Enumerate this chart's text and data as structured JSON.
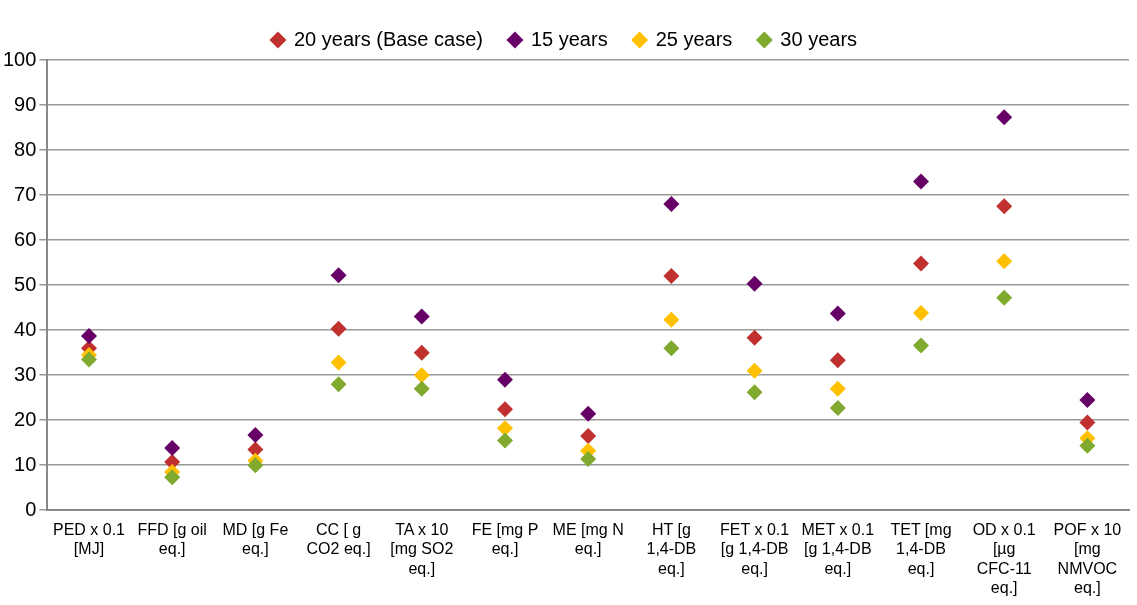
{
  "chart_data": {
    "type": "scatter",
    "categories": [
      "PED x 0.1 [MJ]",
      "FFD [g oil eq.]",
      "MD [g Fe eq.]",
      "CC [ g CO2 eq.]",
      "TA x 10 [mg SO2 eq.]",
      "FE [mg P eq.]",
      "ME  [mg N eq.]",
      "HT [g 1,4-DB eq.]",
      "FET x 0.1 [g 1,4-DB eq.]",
      "MET x 0.1 [g 1,4-DB eq.]",
      "TET [mg 1,4-DB eq.]",
      "OD x 0.1 [µg CFC-11 eq.]",
      "POF x 10 [mg NMVOC eq.]"
    ],
    "series": [
      {
        "name": "20 years (Base case)",
        "color": "#c0302f",
        "values": [
          36,
          10.7,
          13.5,
          40.3,
          35,
          22.4,
          16.5,
          52,
          38.3,
          33.3,
          54.8,
          67.5,
          19.5
        ]
      },
      {
        "name": "15 years",
        "color": "#660066",
        "values": [
          38.7,
          13.8,
          16.7,
          52.2,
          43,
          29,
          21.4,
          68,
          50.3,
          43.7,
          73,
          87.3,
          24.5
        ]
      },
      {
        "name": "25 years",
        "color": "#ffc000",
        "values": [
          34.5,
          8.5,
          11,
          32.8,
          30,
          18.2,
          13.2,
          42.3,
          31,
          27,
          43.8,
          55.3,
          16
        ]
      },
      {
        "name": "30 years",
        "color": "#7faa2e",
        "values": [
          33.5,
          7.3,
          10,
          28,
          27,
          15.5,
          11.4,
          36,
          26.2,
          22.7,
          36.6,
          47.2,
          14.3
        ]
      }
    ],
    "ylim": [
      0,
      100
    ],
    "yticks": [
      0,
      10,
      20,
      30,
      40,
      50,
      60,
      70,
      80,
      90,
      100
    ],
    "grid": "y",
    "legend": "top",
    "marker": "diamond"
  }
}
